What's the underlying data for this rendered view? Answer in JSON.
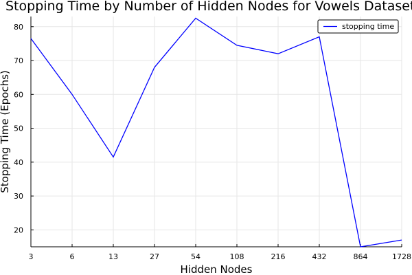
{
  "chart_data": {
    "type": "line",
    "title": "Stopping Time by Number of Hidden Nodes for Vowels Dataset",
    "xlabel": "Hidden Nodes",
    "ylabel": "Stopping Time (Epochs)",
    "categories": [
      "3",
      "6",
      "13",
      "27",
      "54",
      "108",
      "216",
      "432",
      "864",
      "1728"
    ],
    "series": [
      {
        "name": "stopping time",
        "color": "#0000ff",
        "values": [
          76.5,
          60,
          41.5,
          68,
          82.5,
          74.5,
          72,
          77,
          15,
          17
        ]
      }
    ],
    "ylim": [
      15,
      83
    ],
    "yticks": [
      20,
      30,
      40,
      50,
      60,
      70,
      80
    ],
    "grid": true,
    "legend_position": "top-right"
  }
}
